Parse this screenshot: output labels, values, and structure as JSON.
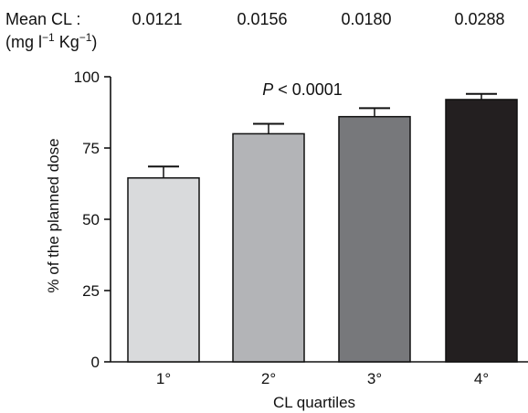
{
  "header": {
    "label_line1": "Mean CL :",
    "label_line2_prefix": "(mg l",
    "label_line2_exp1": "−1",
    "label_line2_mid": " Kg",
    "label_line2_exp2": "−1",
    "label_line2_suffix": ")",
    "values": [
      "0.0121",
      "0.0156",
      "0.0180",
      "0.0288"
    ]
  },
  "chart_data": {
    "type": "bar",
    "categories": [
      "1°",
      "2°",
      "3°",
      "4°"
    ],
    "values": [
      64.5,
      80,
      86,
      92
    ],
    "errors": [
      4,
      3.5,
      3,
      2
    ],
    "colors": [
      "#d9dadc",
      "#b3b4b7",
      "#77787b",
      "#231f20"
    ],
    "xlabel": "CL quartiles",
    "ylabel": "% of the planned dose",
    "ylim": [
      0,
      100
    ],
    "yticks": [
      0,
      25,
      50,
      75,
      100
    ],
    "grid": false,
    "annotation": {
      "p_symbol": "P",
      "rest": " < 0.0001"
    }
  }
}
